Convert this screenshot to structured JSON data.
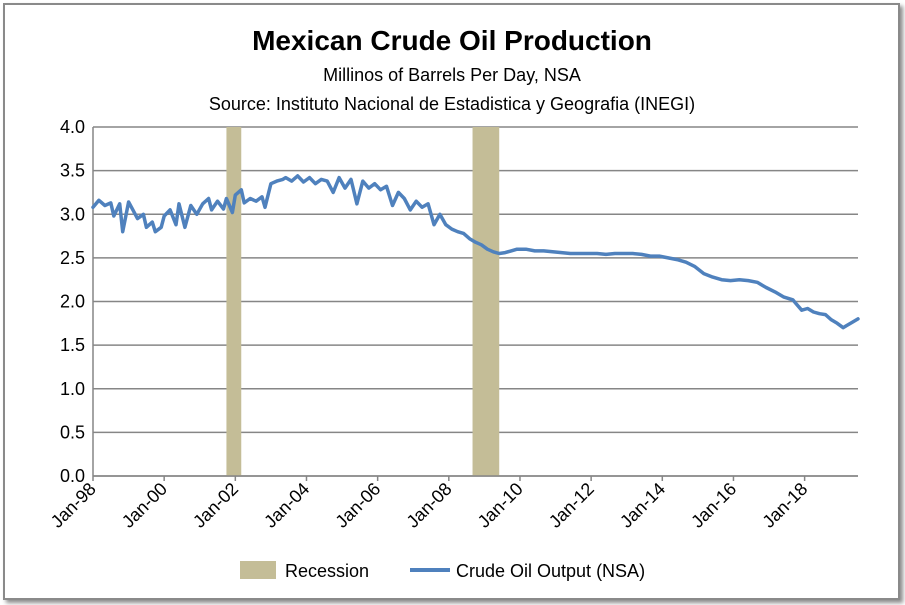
{
  "chart_data": {
    "type": "line",
    "title": "Mexican Crude Oil Production",
    "subtitle": "Millinos of Barrels Per Day, NSA",
    "source": "Source:  Instituto Nacional de Estadistica y Geografia (INEGI)",
    "xlabel": "",
    "ylabel": "",
    "ylim": [
      0,
      4
    ],
    "yticks": [
      "0.0",
      "0.5",
      "1.0",
      "1.5",
      "2.0",
      "2.5",
      "3.0",
      "3.5",
      "4.0"
    ],
    "xlim": [
      "1998-01",
      "2019-07"
    ],
    "xticks": [
      "Jan-98",
      "Jan-00",
      "Jan-02",
      "Jan-04",
      "Jan-06",
      "Jan-08",
      "Jan-10",
      "Jan-12",
      "Jan-14",
      "Jan-16",
      "Jan-18"
    ],
    "grid": "horizontal",
    "legend": "bottom",
    "colors": {
      "line": "#4f81bd",
      "recession": "#c4bd97",
      "grid": "#868686"
    },
    "recessions": [
      {
        "name": "Recession",
        "start": "2001-10",
        "end": "2002-03"
      },
      {
        "name": "Recession",
        "start": "2008-09",
        "end": "2009-06"
      }
    ],
    "series": [
      {
        "name": "Crude Oil Output (NSA)",
        "x": [
          "1998-01",
          "1998-03",
          "1998-05",
          "1998-07",
          "1998-08",
          "1998-10",
          "1998-11",
          "1999-01",
          "1999-02",
          "1999-04",
          "1999-06",
          "1999-07",
          "1999-09",
          "1999-10",
          "1999-12",
          "2000-01",
          "2000-03",
          "2000-05",
          "2000-06",
          "2000-08",
          "2000-10",
          "2000-12",
          "2001-02",
          "2001-04",
          "2001-05",
          "2001-07",
          "2001-09",
          "2001-10",
          "2001-12",
          "2002-01",
          "2002-03",
          "2002-04",
          "2002-06",
          "2002-08",
          "2002-10",
          "2002-11",
          "2003-01",
          "2003-03",
          "2003-05",
          "2003-06",
          "2003-08",
          "2003-10",
          "2003-12",
          "2004-02",
          "2004-04",
          "2004-06",
          "2004-08",
          "2004-10",
          "2004-12",
          "2005-02",
          "2005-04",
          "2005-06",
          "2005-08",
          "2005-10",
          "2005-12",
          "2006-02",
          "2006-04",
          "2006-06",
          "2006-08",
          "2006-10",
          "2006-12",
          "2007-02",
          "2007-04",
          "2007-06",
          "2007-08",
          "2007-10",
          "2007-12",
          "2008-02",
          "2008-04",
          "2008-06",
          "2008-08",
          "2008-10",
          "2008-12",
          "2009-02",
          "2009-04",
          "2009-06",
          "2009-08",
          "2009-10",
          "2009-12",
          "2010-03",
          "2010-06",
          "2010-09",
          "2010-12",
          "2011-03",
          "2011-06",
          "2011-09",
          "2011-12",
          "2012-03",
          "2012-06",
          "2012-09",
          "2012-12",
          "2013-03",
          "2013-06",
          "2013-09",
          "2013-12",
          "2014-03",
          "2014-06",
          "2014-09",
          "2014-12",
          "2015-03",
          "2015-06",
          "2015-09",
          "2015-12",
          "2016-03",
          "2016-06",
          "2016-09",
          "2016-12",
          "2017-03",
          "2017-06",
          "2017-09",
          "2017-10",
          "2017-12",
          "2018-02",
          "2018-04",
          "2018-06",
          "2018-08",
          "2018-10",
          "2018-12",
          "2019-02",
          "2019-03",
          "2019-05",
          "2019-07"
        ],
        "values": [
          3.08,
          3.16,
          3.1,
          3.13,
          2.98,
          3.12,
          2.8,
          3.14,
          3.08,
          2.95,
          3.0,
          2.85,
          2.91,
          2.8,
          2.85,
          2.98,
          3.05,
          2.88,
          3.12,
          2.85,
          3.1,
          3.0,
          3.12,
          3.18,
          3.05,
          3.15,
          3.06,
          3.18,
          3.02,
          3.22,
          3.28,
          3.13,
          3.18,
          3.15,
          3.2,
          3.08,
          3.35,
          3.38,
          3.4,
          3.42,
          3.38,
          3.44,
          3.37,
          3.42,
          3.35,
          3.4,
          3.38,
          3.25,
          3.42,
          3.3,
          3.4,
          3.12,
          3.38,
          3.3,
          3.35,
          3.28,
          3.32,
          3.1,
          3.25,
          3.18,
          3.05,
          3.15,
          3.08,
          3.12,
          2.88,
          3.0,
          2.88,
          2.83,
          2.8,
          2.78,
          2.72,
          2.68,
          2.65,
          2.6,
          2.57,
          2.55,
          2.56,
          2.58,
          2.6,
          2.6,
          2.58,
          2.58,
          2.57,
          2.56,
          2.55,
          2.55,
          2.55,
          2.55,
          2.54,
          2.55,
          2.55,
          2.55,
          2.54,
          2.52,
          2.52,
          2.5,
          2.48,
          2.45,
          2.4,
          2.32,
          2.28,
          2.25,
          2.24,
          2.25,
          2.24,
          2.22,
          2.16,
          2.11,
          2.05,
          2.02,
          1.98,
          1.9,
          1.92,
          1.88,
          1.86,
          1.85,
          1.79,
          1.75,
          1.7,
          1.72,
          1.76,
          1.8
        ]
      }
    ]
  }
}
